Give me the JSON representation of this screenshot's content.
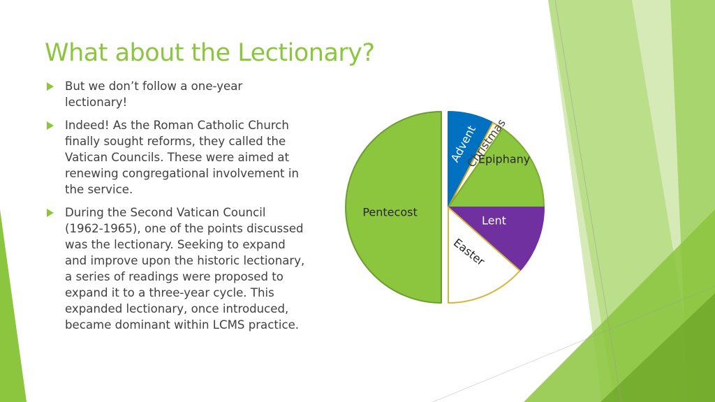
{
  "slide": {
    "title": "What about the Lectionary?",
    "bullets": [
      "But we don’t follow a one-year lectionary!",
      "Indeed! As the Roman Catholic Church finally sought reforms, they called the Vatican Councils. These were aimed at renewing congregational involvement in the service.",
      "During the Second Vatican Council (1962-1965), one of the points discussed was the lectionary. Seeking to expand and improve upon the historic lectionary, a series of readings were proposed to expand it to a three-year cycle. This expanded lectionary, once introduced, became dominant within LCMS practice."
    ],
    "accent_color": "#8cc63f",
    "text_color": "#404040"
  },
  "chart_data": {
    "type": "pie",
    "title": "",
    "exploded": true,
    "start": "top",
    "direction": "clockwise",
    "slices": [
      {
        "label": "Advent",
        "value": 4,
        "color": "#0070c0",
        "label_color": "#ffffff"
      },
      {
        "label": "Christmas",
        "value": 1,
        "color": "#fdfbe4",
        "label_color": "#404040"
      },
      {
        "label": "Epiphany",
        "value": 8,
        "color": "#8cc63f",
        "label_color": "#262626"
      },
      {
        "label": "Lent",
        "value": 6,
        "color": "#7030a0",
        "label_color": "#ffffff"
      },
      {
        "label": "Easter",
        "value": 7,
        "color": "#ffffff",
        "label_color": "#262626"
      },
      {
        "label": "Pentecost",
        "value": 26,
        "color": "#8cc63f",
        "label_color": "#262626"
      }
    ]
  }
}
